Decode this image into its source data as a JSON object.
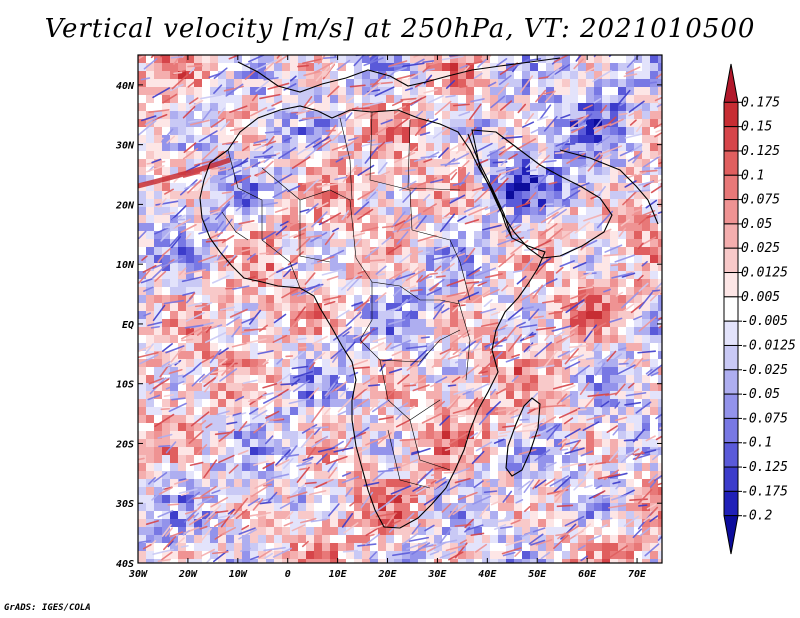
{
  "title": "Vertical velocity [m/s] at 250hPa, VT: 2021010500",
  "footer": "GrADS: IGES/COLA",
  "map": {
    "region": "Africa",
    "lon_range": [
      -30,
      75
    ],
    "lat_range": [
      -40,
      45
    ],
    "x_ticks": [
      "30W",
      "20W",
      "10W",
      "0",
      "10E",
      "20E",
      "30E",
      "40E",
      "50E",
      "60E",
      "70E"
    ],
    "x_tick_values": [
      -30,
      -20,
      -10,
      0,
      10,
      20,
      30,
      40,
      50,
      60,
      70
    ],
    "y_ticks": [
      "40N",
      "30N",
      "20N",
      "10N",
      "EQ",
      "10S",
      "20S",
      "30S",
      "40S"
    ],
    "y_tick_values": [
      40,
      30,
      20,
      10,
      0,
      -10,
      -20,
      -30,
      -40
    ]
  },
  "colorbar": {
    "labels": [
      "0.175",
      "0.15",
      "0.125",
      "0.1",
      "0.075",
      "0.05",
      "0.025",
      "0.0125",
      "0.005",
      "-0.005",
      "-0.0125",
      "-0.025",
      "-0.05",
      "-0.075",
      "-0.1",
      "-0.125",
      "-0.175",
      "-0.2"
    ],
    "colors": [
      "#b2182b",
      "#c72d33",
      "#d6454a",
      "#e05f5f",
      "#e87878",
      "#ef9393",
      "#f4aeae",
      "#f8c9c9",
      "#fde6e6",
      "#ffffff",
      "#e3e3fb",
      "#c9c9f5",
      "#aeaef0",
      "#9393eb",
      "#7878e4",
      "#5a5ad9",
      "#3c3ccb",
      "#2020b8",
      "#0c0c9c"
    ]
  },
  "icons": {
    "map": "velocity-field-map",
    "colorbar": "colorbar-scale"
  }
}
